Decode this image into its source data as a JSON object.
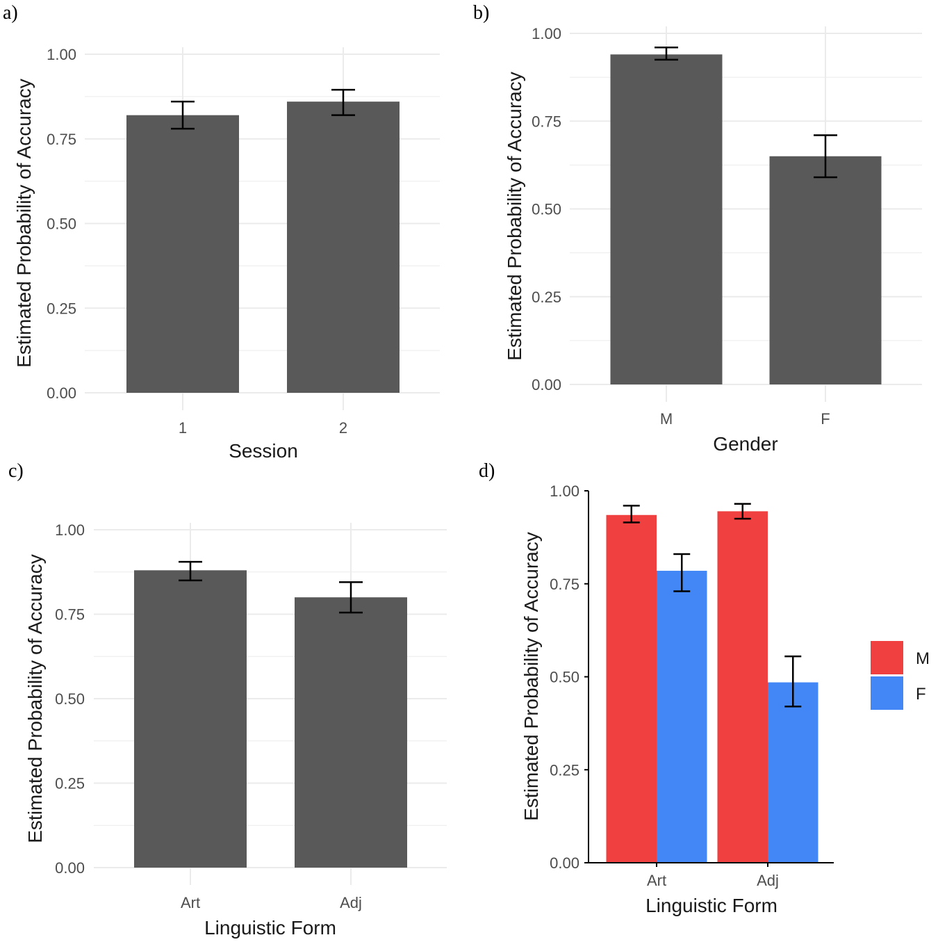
{
  "colors": {
    "bar": "#595959",
    "grid": "#ebebeb",
    "error": "#000000",
    "axis": "#000000",
    "M": "#f04040",
    "F": "#4287f5"
  },
  "chart_data": [
    {
      "panel": "a)",
      "type": "bar",
      "xlabel": "Session",
      "ylabel": "Estimated Probability of Accuracy",
      "ylim": [
        0,
        1
      ],
      "yticks": [
        "0.00",
        "0.25",
        "0.50",
        "0.75",
        "1.00"
      ],
      "grid": true,
      "categories": [
        "1",
        "2"
      ],
      "values": [
        0.82,
        0.86
      ],
      "error_low": [
        0.78,
        0.82
      ],
      "error_high": [
        0.86,
        0.895
      ]
    },
    {
      "panel": "b)",
      "type": "bar",
      "xlabel": "Gender",
      "ylabel": "Estimated Probability of Accuracy",
      "ylim": [
        0,
        1
      ],
      "yticks": [
        "0.00",
        "0.25",
        "0.50",
        "0.75",
        "1.00"
      ],
      "grid": true,
      "categories": [
        "M",
        "F"
      ],
      "values": [
        0.94,
        0.65
      ],
      "error_low": [
        0.925,
        0.59
      ],
      "error_high": [
        0.96,
        0.71
      ]
    },
    {
      "panel": "c)",
      "type": "bar",
      "xlabel": "Linguistic Form",
      "ylabel": "Estimated Probability of Accuracy",
      "ylim": [
        0,
        1
      ],
      "yticks": [
        "0.00",
        "0.25",
        "0.50",
        "0.75",
        "1.00"
      ],
      "grid": true,
      "categories": [
        "Art",
        "Adj"
      ],
      "values": [
        0.88,
        0.8
      ],
      "error_low": [
        0.85,
        0.755
      ],
      "error_high": [
        0.905,
        0.845
      ]
    },
    {
      "panel": "d)",
      "type": "bar",
      "xlabel": "Linguistic Form",
      "ylabel": "Estimated Probability of Accuracy",
      "ylim": [
        0,
        1
      ],
      "yticks": [
        "0.00",
        "0.25",
        "0.50",
        "0.75",
        "1.00"
      ],
      "grid": false,
      "categories": [
        "Art",
        "Adj"
      ],
      "legend_placement": "right",
      "series": [
        {
          "name": "M",
          "values": [
            0.935,
            0.945
          ],
          "error_low": [
            0.915,
            0.925
          ],
          "error_high": [
            0.96,
            0.965
          ]
        },
        {
          "name": "F",
          "values": [
            0.785,
            0.485
          ],
          "error_low": [
            0.73,
            0.42
          ],
          "error_high": [
            0.83,
            0.555
          ]
        }
      ]
    }
  ]
}
